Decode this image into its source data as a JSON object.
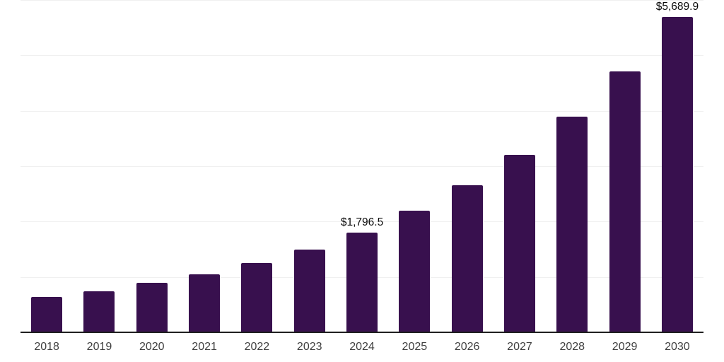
{
  "chart": {
    "background_color": "#ffffff",
    "bar_color": "#38104e",
    "axis_line_color": "#1f1f1f",
    "gridline_color": "#f0f0f0",
    "tick_label_color": "#3f3f3f",
    "data_label_color": "#0a0a0a"
  },
  "chart_data": {
    "type": "bar",
    "title": "",
    "xlabel": "",
    "ylabel": "",
    "categories": [
      "2018",
      "2019",
      "2020",
      "2021",
      "2022",
      "2023",
      "2024",
      "2025",
      "2026",
      "2027",
      "2028",
      "2029",
      "2030"
    ],
    "values": [
      640,
      740,
      890,
      1050,
      1250,
      1490,
      1796.5,
      2195,
      2650,
      3200,
      3900,
      4705,
      5689.9
    ],
    "labeled_points": [
      {
        "category": "2024",
        "text": "$1,796.5"
      },
      {
        "category": "2030",
        "text": "$5,689.9"
      }
    ],
    "ylim": [
      0,
      6000
    ],
    "gridline_interval": 1000,
    "grid": "horizontal",
    "y_tick_labels_visible": false,
    "legend_position": "none"
  }
}
